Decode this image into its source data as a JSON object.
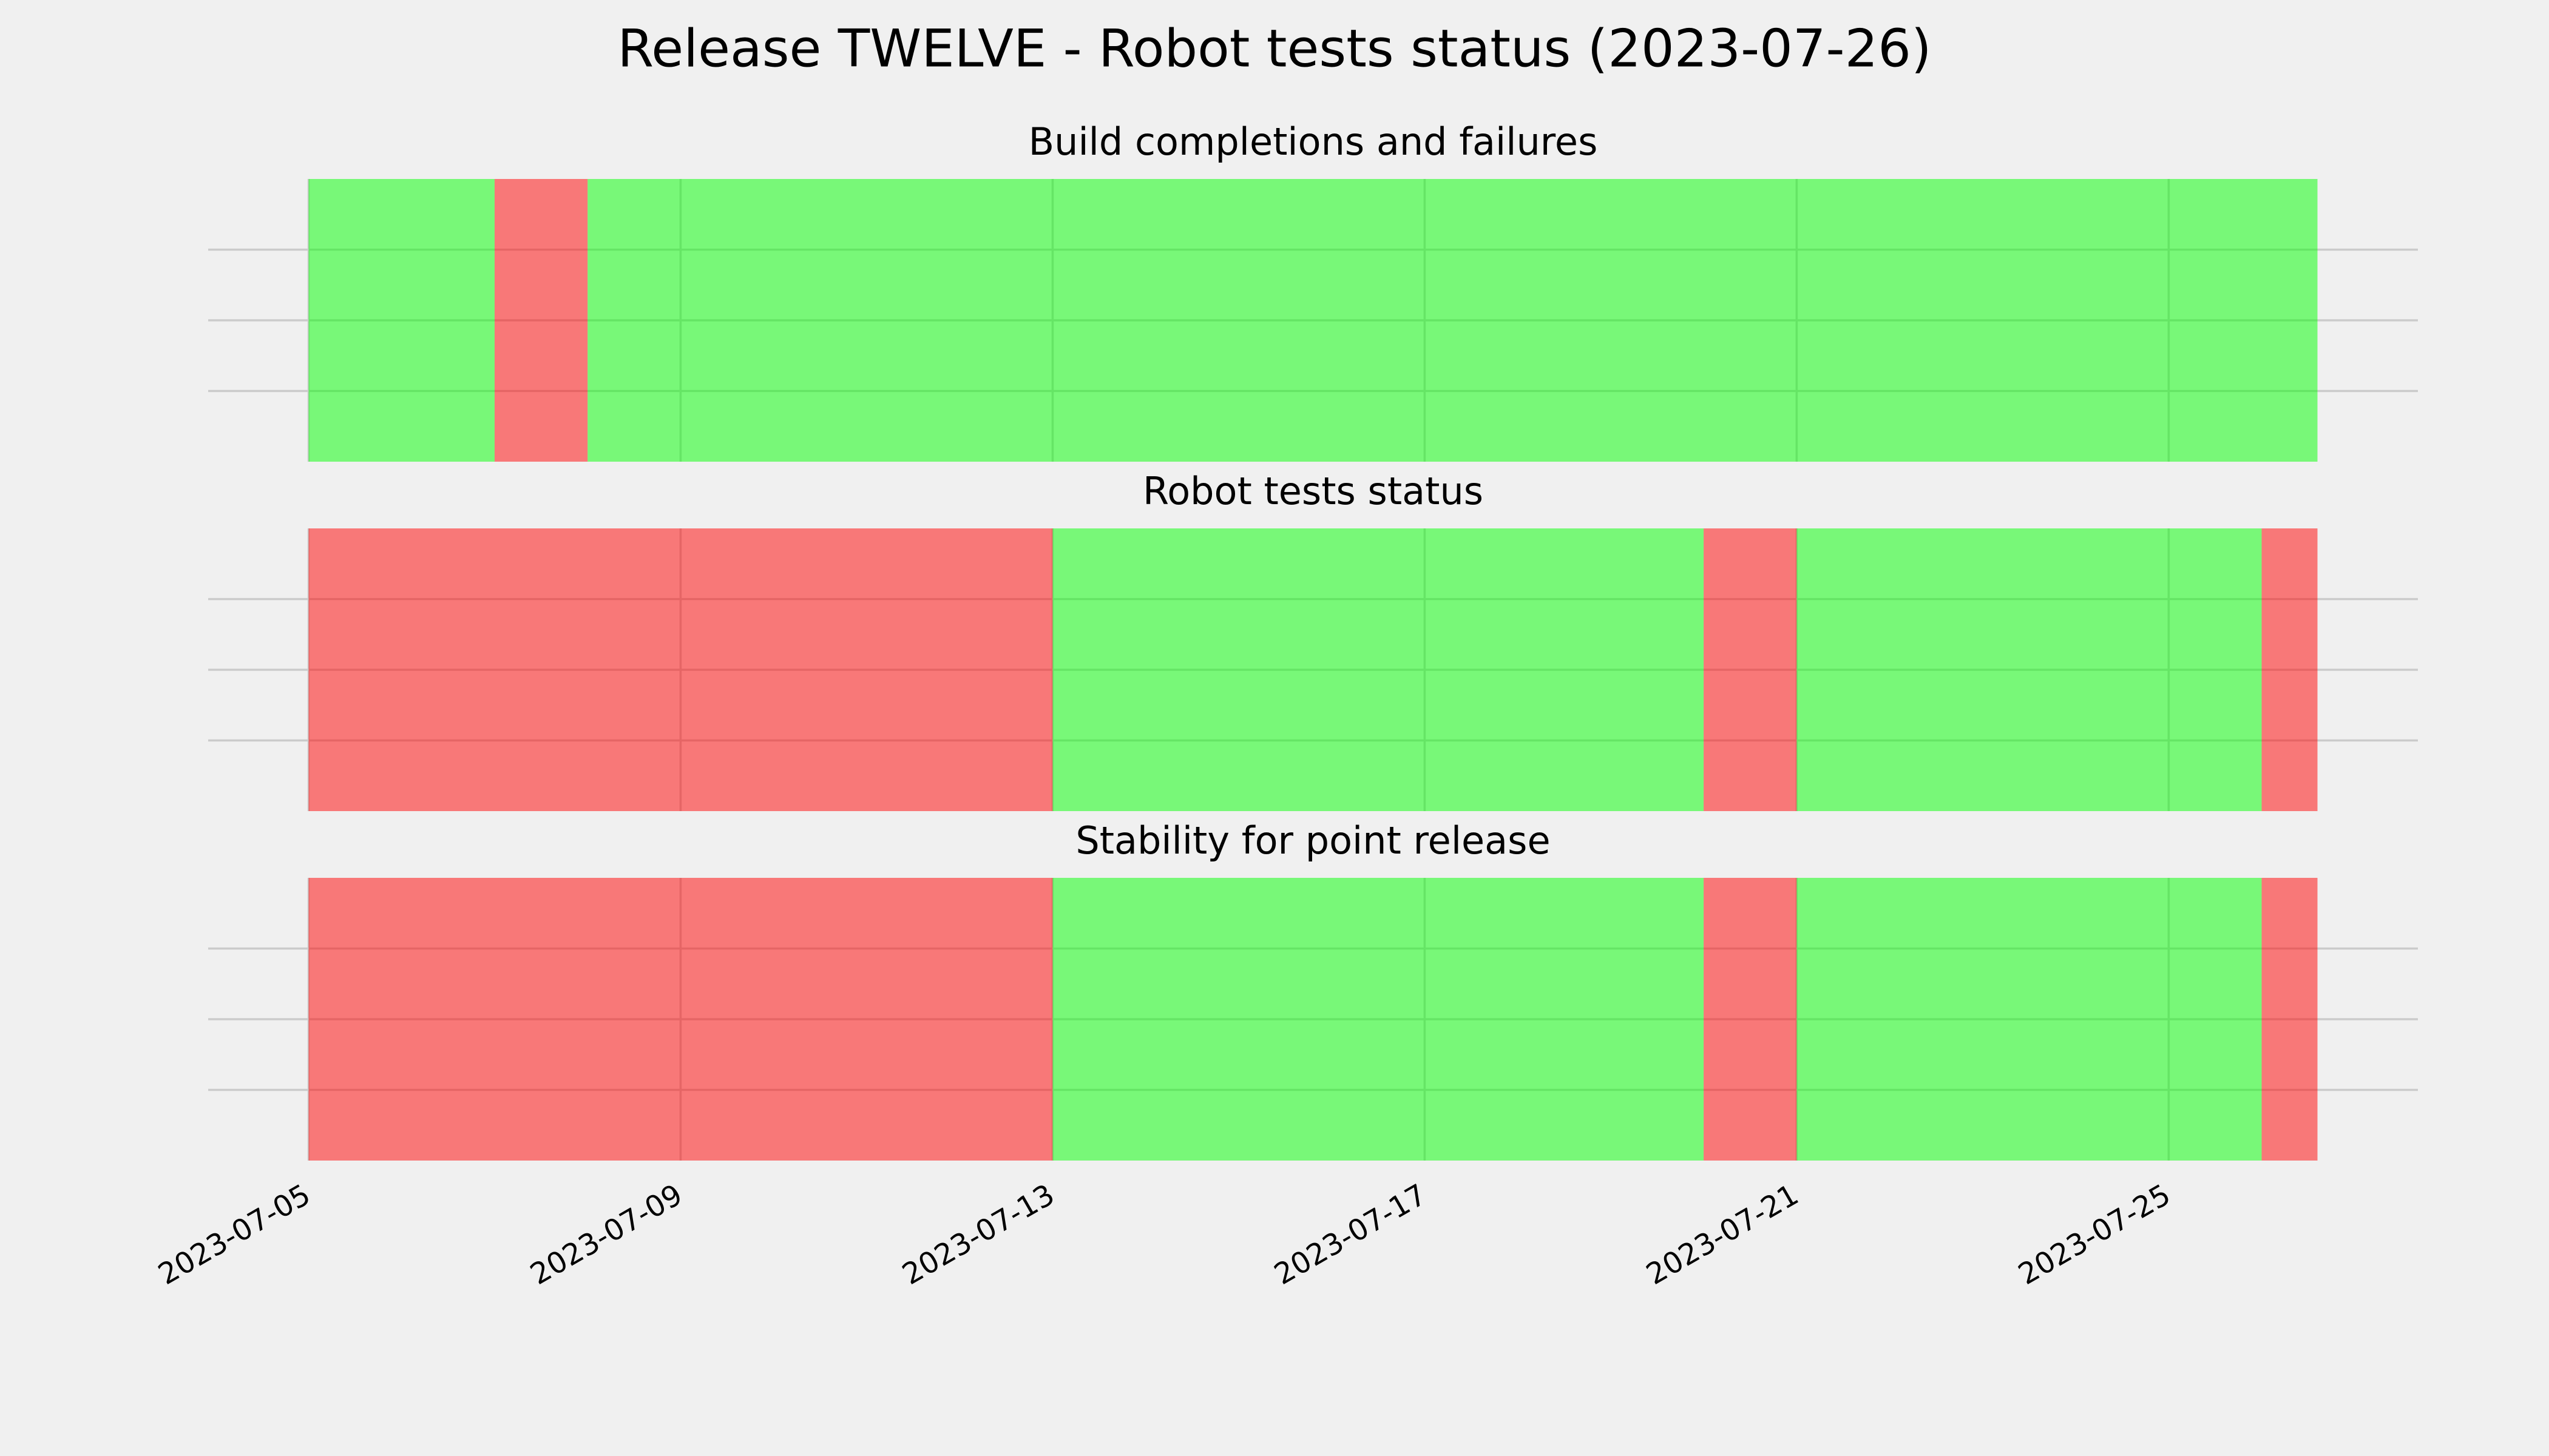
{
  "title": "Release TWELVE - Robot tests status (2023-07-26)",
  "xaxis": {
    "xlim": [
      -1.08,
      22.68
    ],
    "xticks": [
      {
        "value": 0,
        "label": "2023-07-05"
      },
      {
        "value": 4,
        "label": "2023-07-09"
      },
      {
        "value": 8,
        "label": "2023-07-13"
      },
      {
        "value": 12,
        "label": "2023-07-17"
      },
      {
        "value": 16,
        "label": "2023-07-21"
      },
      {
        "value": 20,
        "label": "2023-07-25"
      }
    ]
  },
  "chart_data": [
    {
      "type": "span",
      "title": "Build completions and failures",
      "ylim": [
        0,
        1
      ],
      "yticks": [
        0.25,
        0.5,
        0.75
      ],
      "grid": true,
      "spans_x": [
        [
          0,
          2
        ],
        [
          2,
          3
        ],
        [
          3,
          21.6
        ]
      ],
      "span_colors": [
        "#00ff00",
        "#ff0000",
        "#00ff00"
      ]
    },
    {
      "type": "span",
      "title": "Robot tests status",
      "ylim": [
        0,
        1
      ],
      "yticks": [
        0.25,
        0.5,
        0.75
      ],
      "grid": true,
      "spans_x": [
        [
          0,
          8
        ],
        [
          8,
          15
        ],
        [
          15,
          16
        ],
        [
          16,
          21
        ],
        [
          21,
          21.6
        ]
      ],
      "span_colors": [
        "#ff0000",
        "#00ff00",
        "#ff0000",
        "#00ff00",
        "#ff0000"
      ]
    },
    {
      "type": "span",
      "title": "Stability for point release",
      "ylim": [
        0,
        1
      ],
      "yticks": [
        0.25,
        0.5,
        0.75
      ],
      "grid": true,
      "spans_x": [
        [
          0,
          8
        ],
        [
          8,
          15
        ],
        [
          15,
          16
        ],
        [
          16,
          21
        ],
        [
          21,
          21.6
        ]
      ],
      "span_colors": [
        "#ff0000",
        "#00ff00",
        "#ff0000",
        "#00ff00",
        "#ff0000"
      ]
    }
  ]
}
